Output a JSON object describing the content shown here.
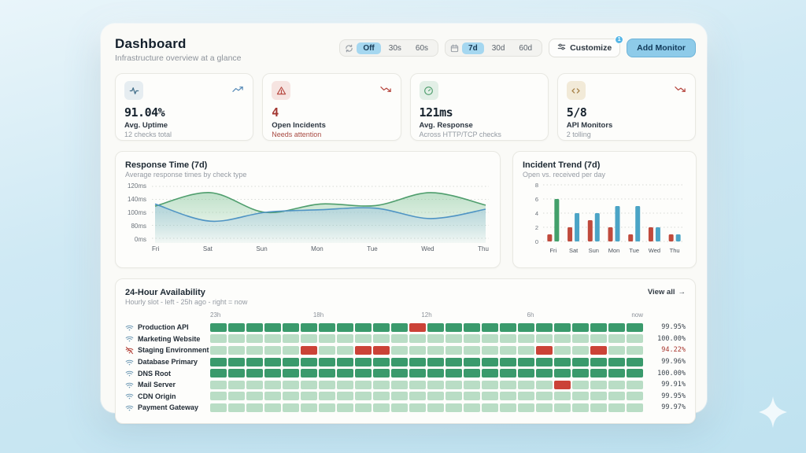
{
  "page": {
    "title": "Dashboard",
    "subtitle": "Infrastructure overview at a glance"
  },
  "controls": {
    "refresh": {
      "options": [
        "Off",
        "30s",
        "60s"
      ],
      "selected": "Off"
    },
    "range": {
      "options": [
        "7d",
        "30d",
        "60d"
      ],
      "selected": "7d"
    },
    "customize_label": "Customize",
    "customize_badge": "1",
    "add_monitor_label": "Add Monitor"
  },
  "stats": [
    {
      "icon": "activity-icon",
      "value": "91.04%",
      "label": "Avg. Uptime",
      "sub": "12 checks total",
      "trend": "up"
    },
    {
      "icon": "alert-triangle-icon",
      "value": "4",
      "label": "Open Incidents",
      "sub": "Needs attention",
      "trend": "down",
      "tone": "red"
    },
    {
      "icon": "gauge-icon",
      "value": "121ms",
      "label": "Avg. Response",
      "sub": "Across HTTP/TCP checks",
      "trend": null
    },
    {
      "icon": "code-icon",
      "value": "5/8",
      "label": "API Monitors",
      "sub": "2 tolling",
      "trend": "down"
    }
  ],
  "chart_data": [
    {
      "type": "area",
      "title": "Response Time (7d)",
      "subtitle": "Average response times by check type",
      "x": [
        "Fri",
        "Sat",
        "Sun",
        "Mon",
        "Tue",
        "Wed",
        "Thu"
      ],
      "y_tick_labels": [
        "120ms",
        "140ms",
        "100ms",
        "80ms",
        "0ms"
      ],
      "grid": "dotted-horizontal",
      "legend": "none",
      "series": [
        {
          "name": "green-check-type",
          "color": "#4f9e6d",
          "fill": "#8cc9a0",
          "values_pct_of_height": [
            62,
            88,
            50,
            66,
            63,
            88,
            64
          ]
        },
        {
          "name": "blue-check-type",
          "color": "#4f94c4",
          "fill": "#9cc4e0",
          "values_pct_of_height": [
            66,
            33,
            50,
            55,
            58,
            38,
            56
          ]
        }
      ]
    },
    {
      "type": "bar",
      "title": "Incident Trend (7d)",
      "subtitle": "Open vs. received per day",
      "categories": [
        "Fri",
        "Sat",
        "Sun",
        "Mon",
        "Tue",
        "Wed",
        "Thu"
      ],
      "ylim": [
        0,
        8
      ],
      "y_ticks": [
        8,
        6,
        4,
        2,
        0
      ],
      "grid": "dotted-horizontal",
      "legend": "none",
      "series": [
        {
          "name": "open",
          "color": "#c04a3c",
          "values": [
            1,
            2,
            3,
            2,
            1,
            2,
            1
          ],
          "bar_colors": [
            "#c04a3c",
            "#c04a3c",
            "#c04a3c",
            "#c04a3c",
            "#c04a3c",
            "#c04a3c",
            "#c04a3c"
          ]
        },
        {
          "name": "received",
          "color": "#4ba4c6",
          "values": [
            6,
            4,
            4,
            5,
            5,
            2,
            1
          ],
          "bar_colors": [
            "#43a06b",
            "#4ba4c6",
            "#4ba4c6",
            "#4ba4c6",
            "#4ba4c6",
            "#4ba4c6",
            "#4ba4c6"
          ]
        }
      ]
    }
  ],
  "availability": {
    "title": "24-Hour Availability",
    "subtitle": "Hourly slot - left - 25h ago - right = now",
    "view_all_label": "View all",
    "view_all_icon": "arrow-right-icon",
    "time_headers": [
      "23h",
      "18h",
      "12h",
      "6h",
      "now"
    ],
    "slots_per_row": 24,
    "colors": {
      "up_dark": "#3a9a6c",
      "up_light": "#b9ddc5",
      "down": "#cb4237"
    },
    "rows": [
      {
        "name": "Production API",
        "icon": "wifi-icon",
        "tone": "dark",
        "down_slots": [
          11
        ],
        "uptime": "99.95%",
        "alert": false
      },
      {
        "name": "Marketing Website",
        "icon": "wifi-icon",
        "tone": "light",
        "down_slots": [],
        "uptime": "100.00%",
        "alert": false
      },
      {
        "name": "Staging Environment",
        "icon": "wifi-off-icon",
        "tone": "light",
        "down_slots": [
          5,
          8,
          9,
          18,
          21
        ],
        "uptime": "94.22%",
        "alert": true
      },
      {
        "name": "Database Primary",
        "icon": "wifi-icon",
        "tone": "dark",
        "down_slots": [],
        "uptime": "99.96%",
        "alert": false
      },
      {
        "name": "DNS Root",
        "icon": "wifi-icon",
        "tone": "dark",
        "down_slots": [],
        "uptime": "100.00%",
        "alert": false
      },
      {
        "name": "Mail Server",
        "icon": "wifi-icon",
        "tone": "light",
        "down_slots": [
          19
        ],
        "uptime": "99.91%",
        "alert": false
      },
      {
        "name": "CDN Origin",
        "icon": "wifi-icon",
        "tone": "light",
        "down_slots": [],
        "uptime": "99.95%",
        "alert": false
      },
      {
        "name": "Payment Gateway",
        "icon": "wifi-icon",
        "tone": "light",
        "down_slots": [],
        "uptime": "99.97%",
        "alert": false
      }
    ]
  }
}
